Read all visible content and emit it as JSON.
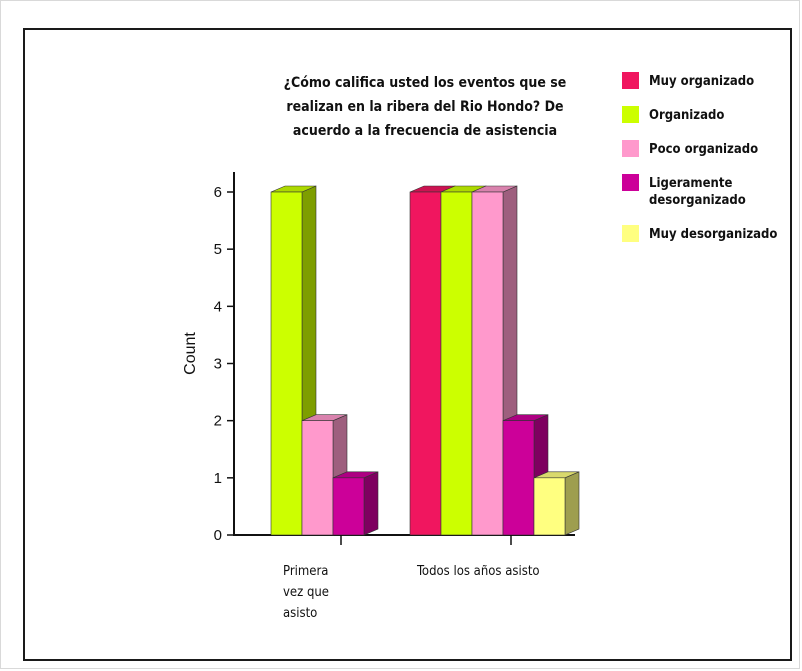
{
  "chart_data": {
    "type": "bar",
    "title_lines": [
      "¿Cómo califica usted los eventos que se",
      "realizan en la ribera del Rio Hondo? De",
      "acuerdo a la frecuencia de asistencia"
    ],
    "ylabel": "Count",
    "xlabel": "",
    "ylim": [
      0,
      6
    ],
    "yticks": [
      0,
      1,
      2,
      3,
      4,
      5,
      6
    ],
    "grid": false,
    "legend_position": "top-right",
    "categories": [
      {
        "label_lines": [
          "Primera",
          "vez que",
          "asisto"
        ]
      },
      {
        "label_lines": [
          "Todos los años asisto"
        ]
      }
    ],
    "series": [
      {
        "name_lines": [
          "Muy organizado"
        ],
        "color": "#f0165f",
        "values": [
          0,
          6
        ]
      },
      {
        "name_lines": [
          "Organizado"
        ],
        "color": "#ccff00",
        "values": [
          6,
          6
        ]
      },
      {
        "name_lines": [
          "Poco organizado"
        ],
        "color": "#ff99cc",
        "values": [
          2,
          6
        ]
      },
      {
        "name_lines": [
          "Ligeramente",
          "desorganizado"
        ],
        "color": "#cc0099",
        "values": [
          1,
          2
        ]
      },
      {
        "name_lines": [
          "Muy desorganizado"
        ],
        "color": "#ffff80",
        "values": [
          0,
          1
        ]
      }
    ]
  }
}
